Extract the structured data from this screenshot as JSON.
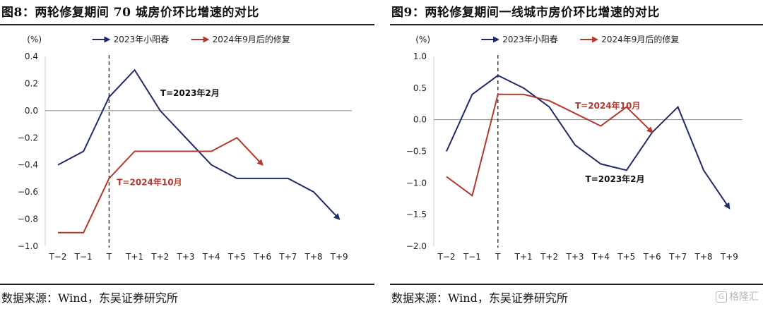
{
  "chart_data": [
    {
      "type": "line",
      "title": "图8：两轮修复期间 70 城房价环比增速的对比",
      "source": "数据来源：Wind，东吴证券研究所",
      "unit": "(%)",
      "categories": [
        "T−2",
        "T−1",
        "T",
        "T+1",
        "T+2",
        "T+3",
        "T+4",
        "T+5",
        "T+6",
        "T+7",
        "T+8",
        "T+9"
      ],
      "ylim": [
        -1.0,
        0.4
      ],
      "yticks": [
        "0.4",
        "0.2",
        "0.0",
        "−0.2",
        "−0.4",
        "−0.6",
        "−0.8",
        "−1.0"
      ],
      "ytick_values": [
        0.4,
        0.2,
        0.0,
        -0.2,
        -0.4,
        -0.6,
        -0.8,
        -1.0
      ],
      "series": [
        {
          "name": "2023年小阳春",
          "color": "#1f2a6b",
          "values": [
            -0.4,
            -0.3,
            0.1,
            0.3,
            0.0,
            -0.2,
            -0.4,
            -0.5,
            -0.5,
            -0.5,
            -0.6,
            -0.8
          ]
        },
        {
          "name": "2024年9月后的修复",
          "color": "#b03a2e",
          "values": [
            -0.9,
            -0.9,
            -0.5,
            -0.3,
            -0.3,
            -0.3,
            -0.3,
            -0.2,
            -0.4,
            null,
            null,
            null
          ]
        }
      ],
      "annotations": [
        {
          "text": "T=2023年2月",
          "color": "#111111",
          "x": 4.0,
          "y": 0.13
        },
        {
          "text": "T=2024年10月",
          "color": "#b03a2e",
          "x": 2.3,
          "y": -0.53
        }
      ]
    },
    {
      "type": "line",
      "title": "图9：两轮修复期间一线城市房价环比增速的对比",
      "source": "数据来源：Wind，东吴证券研究所",
      "unit": "(%)",
      "categories": [
        "T−2",
        "T−1",
        "T",
        "T+1",
        "T+2",
        "T+3",
        "T+4",
        "T+5",
        "T+6",
        "T+7",
        "T+8",
        "T+9"
      ],
      "ylim": [
        -2.0,
        1.0
      ],
      "yticks": [
        "1.0",
        "0.5",
        "0.0",
        "−0.5",
        "−1.0",
        "−1.5",
        "−2.0"
      ],
      "ytick_values": [
        1.0,
        0.5,
        0.0,
        -0.5,
        -1.0,
        -1.5,
        -2.0
      ],
      "series": [
        {
          "name": "2023年小阳春",
          "color": "#1f2a6b",
          "values": [
            -0.5,
            0.4,
            0.7,
            0.5,
            0.2,
            -0.4,
            -0.7,
            -0.8,
            -0.2,
            0.2,
            -0.8,
            -1.4
          ]
        },
        {
          "name": "2024年9月后的修复",
          "color": "#b03a2e",
          "values": [
            -0.9,
            -1.2,
            0.4,
            0.4,
            0.3,
            0.1,
            -0.1,
            0.2,
            -0.2,
            null,
            null,
            null
          ]
        }
      ],
      "annotations": [
        {
          "text": "T=2024年10月",
          "color": "#b03a2e",
          "x": 5.0,
          "y": 0.22
        },
        {
          "text": "T=2023年2月",
          "color": "#111111",
          "x": 5.4,
          "y": -0.94
        }
      ]
    }
  ],
  "watermark": {
    "icon": "G",
    "text": "格隆汇"
  }
}
